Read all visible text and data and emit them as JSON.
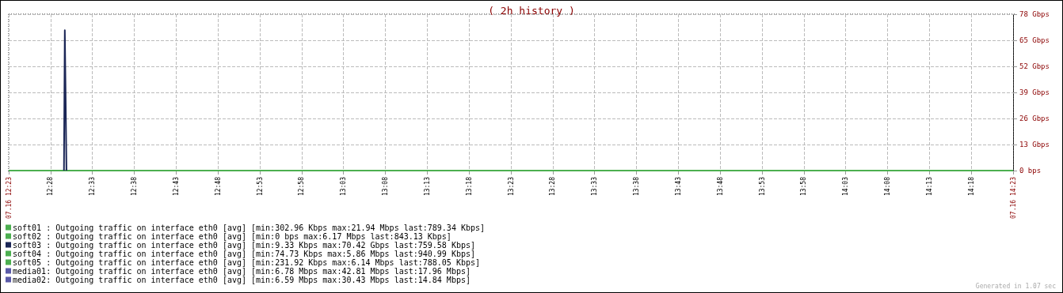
{
  "chart_data": {
    "type": "line",
    "title": "( 2h history )",
    "xlim": [
      12.3833,
      14.3833
    ],
    "ylim": [
      0,
      78
    ],
    "xticks": [
      {
        "value": 12.3833,
        "label": "07.16 12:23"
      },
      {
        "value": 12.4667,
        "label": "12:28"
      },
      {
        "value": 12.55,
        "label": "12:33"
      },
      {
        "value": 12.6333,
        "label": "12:38"
      },
      {
        "value": 12.7167,
        "label": "12:43"
      },
      {
        "value": 12.8,
        "label": "12:48"
      },
      {
        "value": 12.8833,
        "label": "12:53"
      },
      {
        "value": 12.9667,
        "label": "12:58"
      },
      {
        "value": 13.05,
        "label": "13:03"
      },
      {
        "value": 13.1333,
        "label": "13:08"
      },
      {
        "value": 13.2167,
        "label": "13:13"
      },
      {
        "value": 13.3,
        "label": "13:18"
      },
      {
        "value": 13.3833,
        "label": "13:23"
      },
      {
        "value": 13.4667,
        "label": "13:28"
      },
      {
        "value": 13.55,
        "label": "13:33"
      },
      {
        "value": 13.6333,
        "label": "13:38"
      },
      {
        "value": 13.7167,
        "label": "13:43"
      },
      {
        "value": 13.8,
        "label": "13:48"
      },
      {
        "value": 13.8833,
        "label": "13:53"
      },
      {
        "value": 13.9667,
        "label": "13:58"
      },
      {
        "value": 14.05,
        "label": "14:03"
      },
      {
        "value": 14.1333,
        "label": "14:08"
      },
      {
        "value": 14.2167,
        "label": "14:13"
      },
      {
        "value": 14.3,
        "label": "14:18"
      },
      {
        "value": 14.3833,
        "label": "07.16 14:23"
      }
    ],
    "yticks": [
      {
        "value": 0,
        "label": "0 bps"
      },
      {
        "value": 13,
        "label": "13 Gbps"
      },
      {
        "value": 26,
        "label": "26 Gbps"
      },
      {
        "value": 39,
        "label": "39 Gbps"
      },
      {
        "value": 52,
        "label": "52 Gbps"
      },
      {
        "value": 65,
        "label": "65 Gbps"
      },
      {
        "value": 78,
        "label": "78 Gbps"
      }
    ],
    "grid": true,
    "legend": "bottom left",
    "marker": "none",
    "line_style": "solid",
    "annotations": [
      "Generated in 1.07 sec"
    ],
    "series": [
      {
        "name": "soft01 : Outgoing traffic on interface eth0 [avg] [min:302.96 Kbps max:21.94 Mbps last:789.34 Kbps]",
        "color": "#4caf50",
        "x": [
          12.3833,
          14.3833
        ],
        "values": [
          0,
          0
        ]
      },
      {
        "name": "soft02 : Outgoing traffic on interface eth0 [avg] [min:0 bps max:6.17 Mbps last:843.13 Kbps]",
        "color": "#4caf50"
      },
      {
        "name": "soft03 : Outgoing traffic on interface eth0 [avg] [min:9.33 Kbps max:70.42 Gbps last:759.58 Kbps]",
        "color": "#1b2656",
        "x": [
          12.4933,
          12.495,
          12.4967,
          12.4983
        ],
        "values": [
          0,
          70,
          35,
          0
        ]
      },
      {
        "name": "soft04 : Outgoing traffic on interface eth0 [avg] [min:74.73 Kbps max:5.86 Mbps last:940.99 Kbps]",
        "color": "#4caf50"
      },
      {
        "name": "soft05 : Outgoing traffic on interface eth0 [avg] [min:231.92 Kbps max:6.14 Mbps last:788.05 Kbps]",
        "color": "#4caf50"
      },
      {
        "name": "media01: Outgoing traffic on interface eth0 [avg] [min:6.78 Mbps max:42.81 Mbps last:17.96 Mbps]",
        "color": "#5a5aa8"
      },
      {
        "name": "media02: Outgoing traffic on interface eth0 [avg] [min:6.59 Mbps max:30.43 Mbps last:14.84 Mbps]",
        "color": "#5a5aa8"
      }
    ]
  }
}
